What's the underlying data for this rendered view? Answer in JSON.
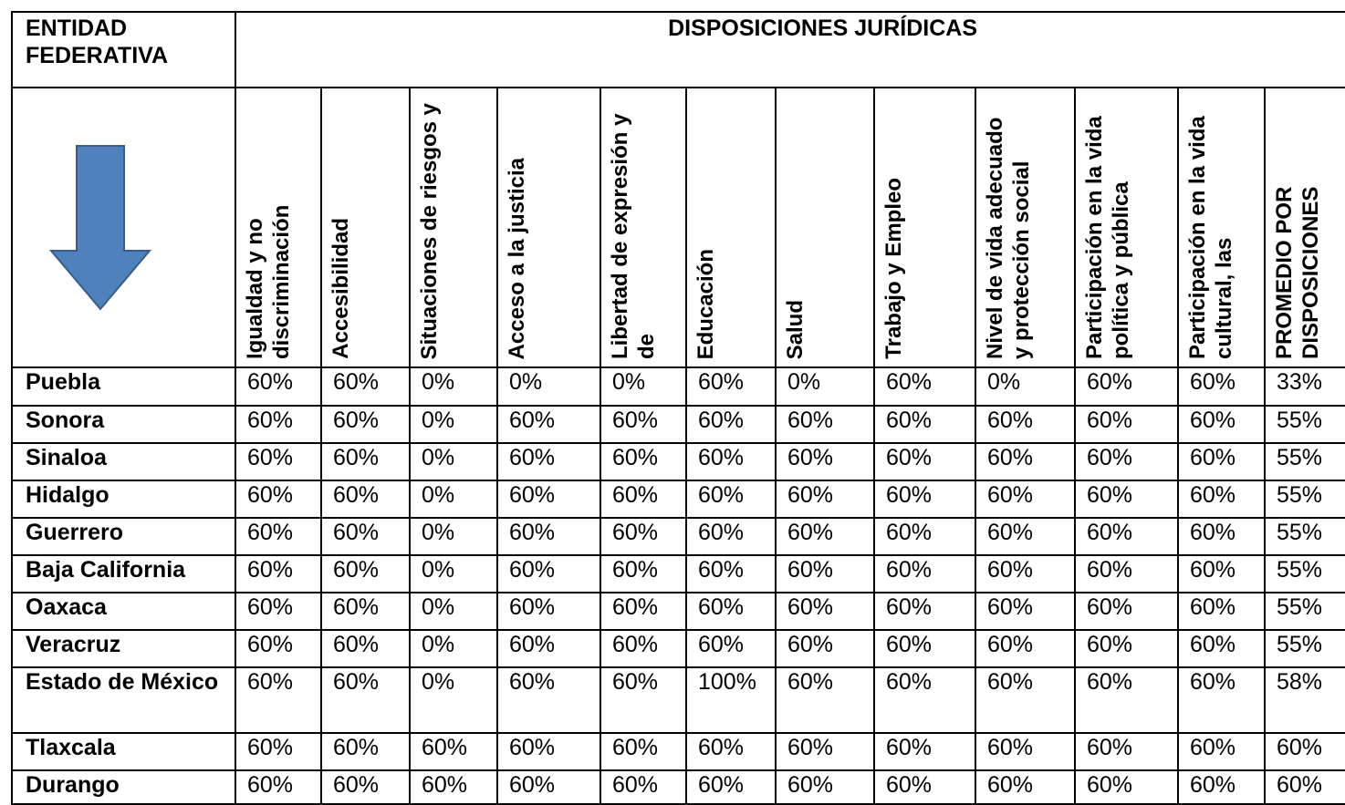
{
  "table": {
    "corner": "ENTIDAD FEDERATIVA",
    "group": "DISPOSICIONES JURÍDICAS",
    "columns": [
      "Igualdad y no discriminación",
      "Accesibilidad",
      "Situaciones de riesgos y",
      "Acceso a la justicia",
      "Libertad de expresión y de",
      "Educación",
      "Salud",
      "Trabajo y Empleo",
      "Nivel de vida adecuado y protección social",
      "Participación en la vida política y pública",
      "Participación en la vida cultural, las",
      "PROMEDIO POR DISPOSICIONES"
    ],
    "rows": [
      [
        "Puebla",
        "60%",
        "60%",
        "0%",
        "0%",
        "0%",
        "60%",
        "0%",
        "60%",
        "0%",
        "60%",
        "60%",
        "33%"
      ],
      [
        "Sonora",
        "60%",
        "60%",
        "0%",
        "60%",
        "60%",
        "60%",
        "60%",
        "60%",
        "60%",
        "60%",
        "60%",
        "55%"
      ],
      [
        "Sinaloa",
        "60%",
        "60%",
        "0%",
        "60%",
        "60%",
        "60%",
        "60%",
        "60%",
        "60%",
        "60%",
        "60%",
        "55%"
      ],
      [
        "Hidalgo",
        "60%",
        "60%",
        "0%",
        "60%",
        "60%",
        "60%",
        "60%",
        "60%",
        "60%",
        "60%",
        "60%",
        "55%"
      ],
      [
        "Guerrero",
        "60%",
        "60%",
        "0%",
        "60%",
        "60%",
        "60%",
        "60%",
        "60%",
        "60%",
        "60%",
        "60%",
        "55%"
      ],
      [
        "Baja California",
        "60%",
        "60%",
        "0%",
        "60%",
        "60%",
        "60%",
        "60%",
        "60%",
        "60%",
        "60%",
        "60%",
        "55%"
      ],
      [
        "Oaxaca",
        "60%",
        "60%",
        "0%",
        "60%",
        "60%",
        "60%",
        "60%",
        "60%",
        "60%",
        "60%",
        "60%",
        "55%"
      ],
      [
        "Veracruz",
        "60%",
        "60%",
        "0%",
        "60%",
        "60%",
        "60%",
        "60%",
        "60%",
        "60%",
        "60%",
        "60%",
        "55%"
      ],
      [
        "Estado de México",
        "60%",
        "60%",
        "0%",
        "60%",
        "60%",
        "100%",
        "60%",
        "60%",
        "60%",
        "60%",
        "60%",
        "58%"
      ],
      [
        "Tlaxcala",
        "60%",
        "60%",
        "60%",
        "60%",
        "60%",
        "60%",
        "60%",
        "60%",
        "60%",
        "60%",
        "60%",
        "60%"
      ],
      [
        "Durango",
        "60%",
        "60%",
        "60%",
        "60%",
        "60%",
        "60%",
        "60%",
        "60%",
        "60%",
        "60%",
        "60%",
        "60%"
      ]
    ]
  }
}
